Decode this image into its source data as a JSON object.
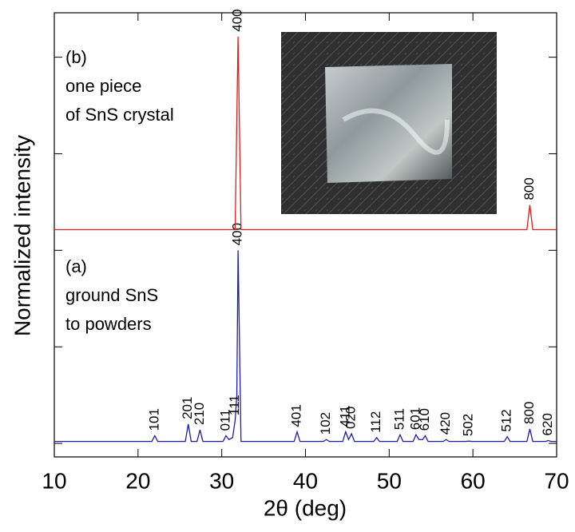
{
  "chart_data": {
    "type": "line",
    "x_label": "2θ (deg)",
    "y_label": "Normalized intensity",
    "xlim": [
      10,
      70
    ],
    "xticks": [
      10,
      20,
      30,
      40,
      50,
      60,
      70
    ],
    "ylim": [
      -0.07,
      2.23
    ],
    "yticks": [
      0,
      0.5,
      1,
      1.5,
      2
    ],
    "series": [
      {
        "name": "(a)",
        "note": [
          "(a)",
          "ground SnS",
          "to powders"
        ],
        "color": "#1c1ca8",
        "x": [
          10,
          21.65,
          22.0,
          22.35,
          25.65,
          26.0,
          26.35,
          27.05,
          27.4,
          27.75,
          30.15,
          30.5,
          30.85,
          31.3,
          31.6,
          31.8,
          31.95,
          32.3,
          38.65,
          39.0,
          39.35,
          42.15,
          42.5,
          42.85,
          44.45,
          44.8,
          45.15,
          45.5,
          45.85,
          48.15,
          48.5,
          48.85,
          50.95,
          51.3,
          51.65,
          52.85,
          53.2,
          53.55,
          54.0,
          54.3,
          54.65,
          56.45,
          56.8,
          57.15,
          59.15,
          59.5,
          59.85,
          63.75,
          64.1,
          64.45,
          66.45,
          66.8,
          67.15,
          68.7,
          69.0,
          69.3,
          70
        ],
        "values": [
          0.01,
          0.01,
          0.04,
          0.01,
          0.01,
          0.1,
          0.01,
          0.01,
          0.07,
          0.01,
          0.01,
          0.04,
          0.02,
          0.03,
          0.12,
          0.25,
          1.0,
          0.01,
          0.01,
          0.06,
          0.01,
          0.01,
          0.02,
          0.01,
          0.01,
          0.06,
          0.02,
          0.05,
          0.01,
          0.01,
          0.03,
          0.01,
          0.01,
          0.045,
          0.01,
          0.01,
          0.045,
          0.02,
          0.02,
          0.04,
          0.01,
          0.01,
          0.02,
          0.01,
          0.01,
          0.012,
          0.01,
          0.01,
          0.035,
          0.01,
          0.01,
          0.075,
          0.01,
          0.01,
          0.015,
          0.01,
          0.01
        ],
        "peaks": [
          {
            "label": "101",
            "x": 22.0
          },
          {
            "label": "201",
            "x": 26.0
          },
          {
            "label": "210",
            "x": 27.4
          },
          {
            "label": "011",
            "x": 30.5
          },
          {
            "label": "111",
            "x": 31.6
          },
          {
            "label": "400",
            "x": 31.95
          },
          {
            "label": "401",
            "x": 39.0
          },
          {
            "label": "102",
            "x": 42.5
          },
          {
            "label": "411",
            "x": 44.8
          },
          {
            "label": "020",
            "x": 45.5
          },
          {
            "label": "112",
            "x": 48.5
          },
          {
            "label": "511",
            "x": 51.3
          },
          {
            "label": "601",
            "x": 53.2
          },
          {
            "label": "610",
            "x": 54.3
          },
          {
            "label": "420",
            "x": 56.8
          },
          {
            "label": "502",
            "x": 59.5
          },
          {
            "label": "512",
            "x": 64.1
          },
          {
            "label": "800",
            "x": 66.8
          },
          {
            "label": "620",
            "x": 69.0
          }
        ]
      },
      {
        "name": "(b)",
        "note": [
          "(b)",
          "one piece",
          "of SnS crystal"
        ],
        "color": "#d8201c",
        "x": [
          10,
          31.6,
          31.95,
          32.3,
          66.45,
          66.8,
          67.15,
          70
        ],
        "values": [
          1.107,
          1.107,
          2.107,
          1.107,
          1.107,
          1.235,
          1.107,
          1.107
        ],
        "peaks": [
          {
            "label": "400",
            "x": 31.95
          },
          {
            "label": "800",
            "x": 66.8
          }
        ]
      }
    ]
  }
}
